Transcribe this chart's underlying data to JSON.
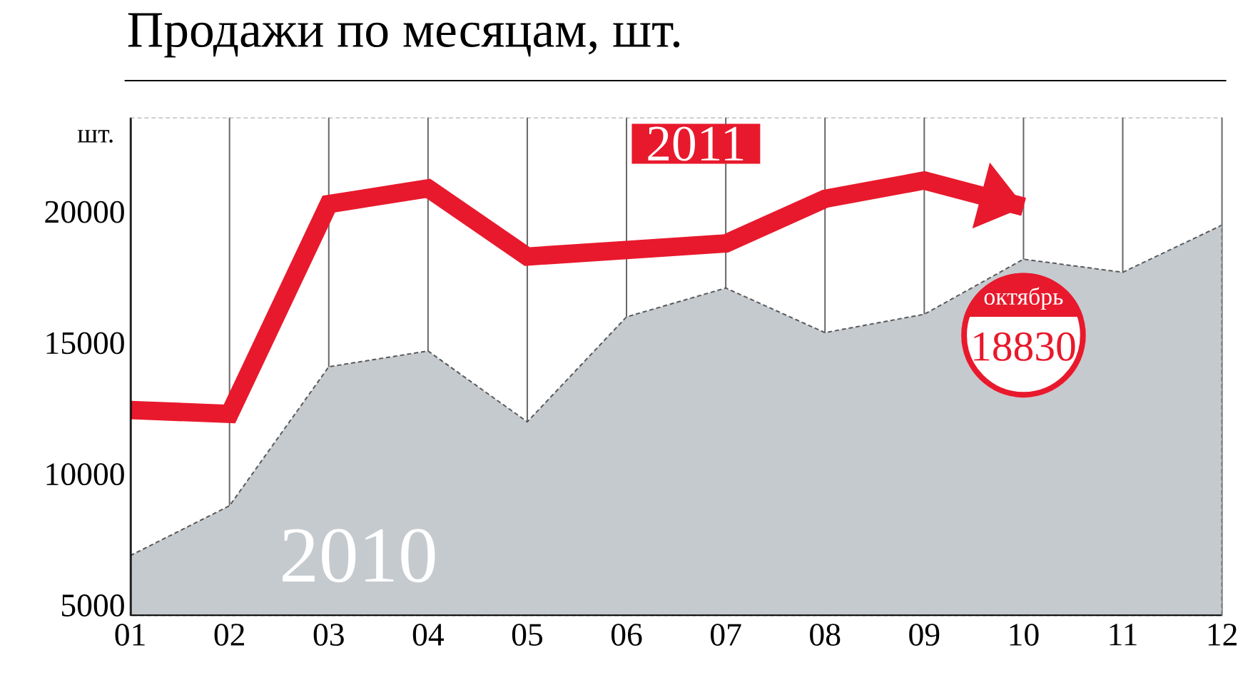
{
  "chart_data": {
    "type": "area",
    "title": "Продажи по месяцам, шт.",
    "ylabel": "шт.",
    "categories": [
      "01",
      "02",
      "03",
      "04",
      "05",
      "06",
      "07",
      "08",
      "09",
      "10",
      "11",
      "12"
    ],
    "series": [
      {
        "name": "2010",
        "color": "#c5cacf",
        "values": [
          6900,
          8800,
          14100,
          14700,
          12000,
          16000,
          17100,
          15400,
          16100,
          18200,
          17700,
          19500
        ]
      },
      {
        "name": "2011",
        "type": "line",
        "color": "#e8192c",
        "values": [
          12450,
          12300,
          20300,
          20900,
          18300,
          18550,
          18800,
          20500,
          21200,
          20200,
          null,
          null
        ]
      }
    ],
    "ylim": [
      4600,
      23600
    ],
    "yticks": [
      5000,
      10000,
      15000,
      20000
    ],
    "grid": "x",
    "annotations": [
      "октябрь",
      "18830"
    ]
  }
}
